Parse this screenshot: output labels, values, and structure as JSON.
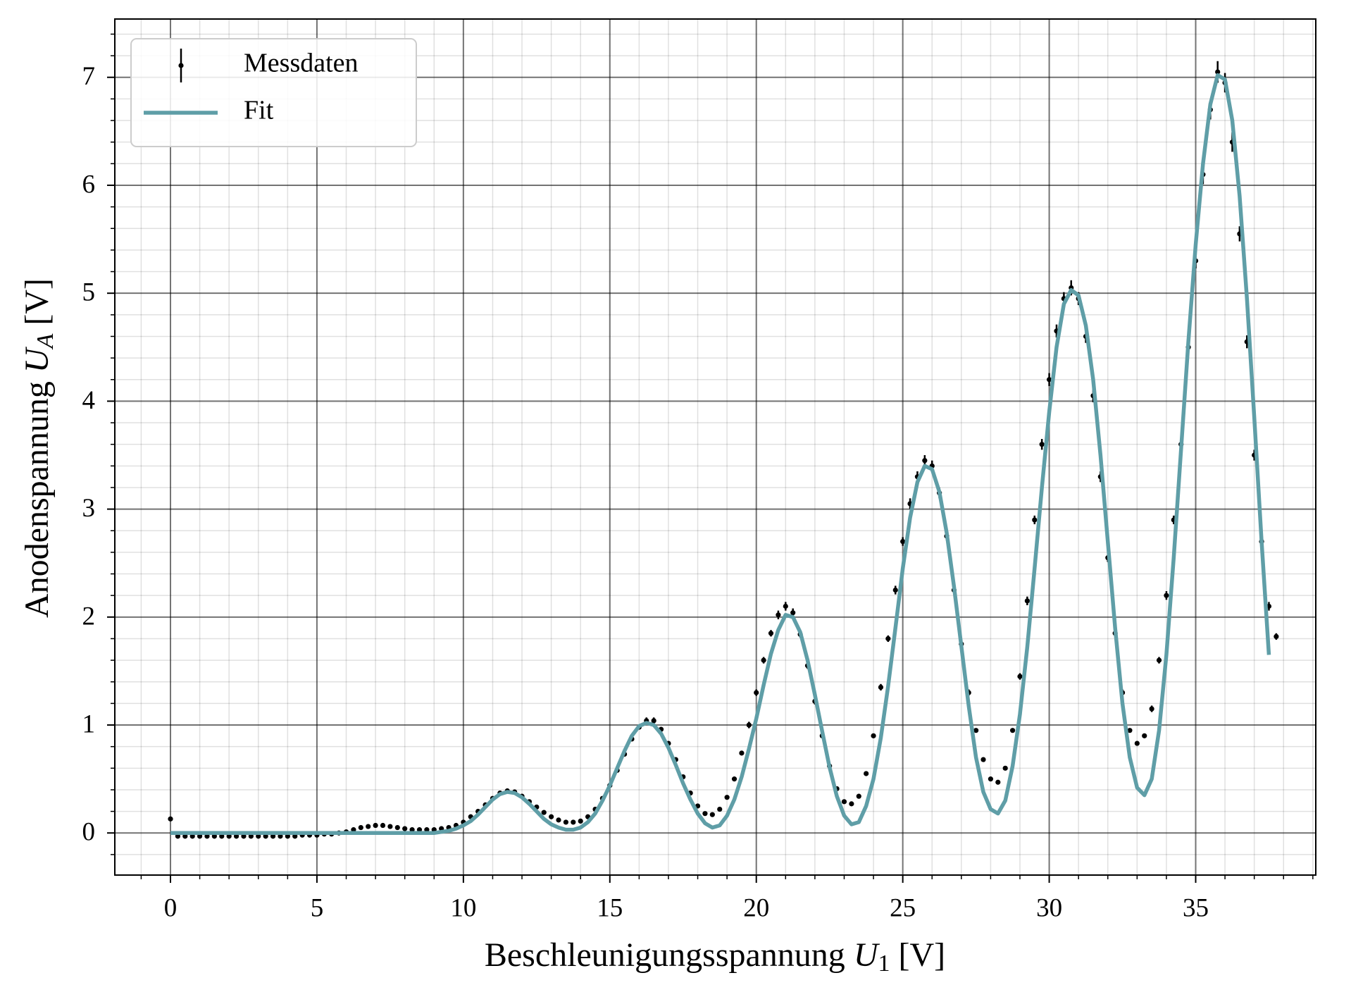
{
  "chart_data": {
    "type": "errorbar_line",
    "xlabel": {
      "text": "Beschleunigungsspannung",
      "var": "U",
      "sub": "1",
      "unit": "[V]"
    },
    "ylabel": {
      "text": "Anodenspannung",
      "var": "U",
      "sub": "A",
      "unit": "[V]"
    },
    "xlim": [
      -1.9,
      39.1
    ],
    "ylim": [
      -0.39,
      7.54
    ],
    "xticks": [
      0,
      5,
      10,
      15,
      20,
      25,
      30,
      35
    ],
    "yticks": [
      0,
      1,
      2,
      3,
      4,
      5,
      6,
      7
    ],
    "x_minor_ticks": [
      -1,
      1,
      2,
      3,
      4,
      6,
      7,
      8,
      9,
      11,
      12,
      13,
      14,
      16,
      17,
      18,
      19,
      21,
      22,
      23,
      24,
      26,
      27,
      28,
      29,
      31,
      32,
      33,
      34,
      36,
      37,
      38,
      39
    ],
    "y_minor_ticks": [
      -0.2,
      0.2,
      0.4,
      0.6,
      0.8,
      1.2,
      1.4,
      1.6,
      1.8,
      2.2,
      2.4,
      2.6,
      2.8,
      3.2,
      3.4,
      3.6,
      3.8,
      4.2,
      4.4,
      4.6,
      4.8,
      5.2,
      5.4,
      5.6,
      5.8,
      6.2,
      6.4,
      6.6,
      6.8,
      7.2,
      7.4
    ],
    "grid": true,
    "legend": "upper left",
    "x": [
      0,
      0.25,
      0.5,
      0.75,
      1,
      1.25,
      1.5,
      1.75,
      2,
      2.25,
      2.5,
      2.75,
      3,
      3.25,
      3.5,
      3.75,
      4,
      4.25,
      4.5,
      4.75,
      5,
      5.25,
      5.5,
      5.75,
      6,
      6.25,
      6.5,
      6.75,
      7,
      7.25,
      7.5,
      7.75,
      8,
      8.25,
      8.5,
      8.75,
      9,
      9.25,
      9.5,
      9.75,
      10,
      10.25,
      10.5,
      10.75,
      11,
      11.25,
      11.5,
      11.75,
      12,
      12.25,
      12.5,
      12.75,
      13,
      13.25,
      13.5,
      13.75,
      14,
      14.25,
      14.5,
      14.75,
      15,
      15.25,
      15.5,
      15.75,
      16,
      16.25,
      16.5,
      16.75,
      17,
      17.25,
      17.5,
      17.75,
      18,
      18.25,
      18.5,
      18.75,
      19,
      19.25,
      19.5,
      19.75,
      20,
      20.25,
      20.5,
      20.75,
      21,
      21.25,
      21.5,
      21.75,
      22,
      22.25,
      22.5,
      22.75,
      23,
      23.25,
      23.5,
      23.75,
      24,
      24.25,
      24.5,
      24.75,
      25,
      25.25,
      25.5,
      25.75,
      26,
      26.25,
      26.5,
      26.75,
      27,
      27.25,
      27.5,
      27.75,
      28,
      28.25,
      28.5,
      28.75,
      29,
      29.25,
      29.5,
      29.75,
      30,
      30.25,
      30.5,
      30.75,
      31,
      31.25,
      31.5,
      31.75,
      32,
      32.25,
      32.5,
      32.75,
      33,
      33.25,
      33.5,
      33.75,
      34,
      34.25,
      34.5,
      34.75,
      35,
      35.25,
      35.5,
      35.75,
      36,
      36.25,
      36.5,
      36.75,
      37,
      37.25,
      37.5,
      37.75
    ],
    "series": [
      {
        "name": "Messdaten",
        "color": "#000000",
        "kind": "errorbar",
        "values": [
          0.13,
          -0.03,
          -0.03,
          -0.03,
          -0.03,
          -0.03,
          -0.03,
          -0.03,
          -0.03,
          -0.03,
          -0.03,
          -0.03,
          -0.03,
          -0.03,
          -0.03,
          -0.03,
          -0.03,
          -0.03,
          -0.02,
          -0.02,
          -0.02,
          -0.01,
          -0.01,
          0.0,
          0.01,
          0.03,
          0.05,
          0.06,
          0.07,
          0.07,
          0.06,
          0.05,
          0.04,
          0.03,
          0.03,
          0.03,
          0.03,
          0.04,
          0.05,
          0.07,
          0.1,
          0.15,
          0.2,
          0.26,
          0.32,
          0.37,
          0.39,
          0.38,
          0.34,
          0.29,
          0.24,
          0.19,
          0.15,
          0.12,
          0.1,
          0.1,
          0.11,
          0.15,
          0.22,
          0.32,
          0.44,
          0.58,
          0.73,
          0.87,
          0.98,
          1.04,
          1.04,
          0.96,
          0.83,
          0.68,
          0.52,
          0.37,
          0.25,
          0.18,
          0.17,
          0.22,
          0.33,
          0.5,
          0.74,
          1.0,
          1.3,
          1.6,
          1.85,
          2.02,
          2.1,
          2.04,
          1.84,
          1.55,
          1.22,
          0.9,
          0.62,
          0.41,
          0.29,
          0.27,
          0.34,
          0.55,
          0.9,
          1.35,
          1.8,
          2.25,
          2.7,
          3.05,
          3.3,
          3.45,
          3.4,
          3.15,
          2.75,
          2.25,
          1.75,
          1.3,
          0.95,
          0.68,
          0.5,
          0.47,
          0.6,
          0.95,
          1.45,
          2.15,
          2.9,
          3.6,
          4.2,
          4.65,
          4.95,
          5.05,
          4.95,
          4.6,
          4.05,
          3.3,
          2.55,
          1.85,
          1.3,
          0.95,
          0.83,
          0.9,
          1.15,
          1.6,
          2.2,
          2.9,
          3.6,
          4.5,
          5.3,
          6.1,
          6.7,
          7.05,
          6.95,
          6.4,
          5.55,
          4.55,
          3.5,
          2.7,
          2.1,
          1.82
        ],
        "yerr": [
          0.02,
          0.02,
          0.02,
          0.02,
          0.02,
          0.02,
          0.02,
          0.02,
          0.02,
          0.02,
          0.02,
          0.02,
          0.02,
          0.02,
          0.02,
          0.02,
          0.02,
          0.02,
          0.02,
          0.02,
          0.02,
          0.02,
          0.02,
          0.02,
          0.02,
          0.02,
          0.02,
          0.02,
          0.02,
          0.02,
          0.02,
          0.02,
          0.02,
          0.02,
          0.02,
          0.02,
          0.02,
          0.02,
          0.02,
          0.02,
          0.02,
          0.02,
          0.02,
          0.02,
          0.02,
          0.02,
          0.02,
          0.02,
          0.02,
          0.02,
          0.02,
          0.02,
          0.02,
          0.02,
          0.02,
          0.02,
          0.02,
          0.02,
          0.02,
          0.02,
          0.02,
          0.02,
          0.02,
          0.02,
          0.02,
          0.03,
          0.03,
          0.02,
          0.02,
          0.02,
          0.02,
          0.02,
          0.02,
          0.02,
          0.02,
          0.02,
          0.02,
          0.02,
          0.02,
          0.03,
          0.03,
          0.03,
          0.03,
          0.04,
          0.04,
          0.04,
          0.03,
          0.03,
          0.03,
          0.02,
          0.02,
          0.02,
          0.02,
          0.02,
          0.02,
          0.02,
          0.02,
          0.03,
          0.03,
          0.04,
          0.04,
          0.05,
          0.05,
          0.05,
          0.05,
          0.05,
          0.04,
          0.04,
          0.03,
          0.03,
          0.02,
          0.02,
          0.02,
          0.02,
          0.02,
          0.02,
          0.03,
          0.04,
          0.04,
          0.05,
          0.06,
          0.06,
          0.06,
          0.07,
          0.06,
          0.06,
          0.06,
          0.05,
          0.04,
          0.03,
          0.03,
          0.02,
          0.02,
          0.02,
          0.03,
          0.03,
          0.04,
          0.04,
          0.05,
          0.06,
          0.07,
          0.09,
          0.09,
          0.1,
          0.09,
          0.09,
          0.07,
          0.06,
          0.05,
          0.04,
          0.04,
          0.03
        ]
      },
      {
        "name": "Fit",
        "color": "#5f9ea7",
        "kind": "line",
        "values": [
          0,
          0,
          0,
          0,
          0,
          0,
          0,
          0,
          0,
          0,
          0,
          0,
          0,
          0,
          0,
          0,
          0,
          0,
          0,
          0,
          0,
          0,
          0,
          0,
          0,
          0,
          0,
          0,
          0,
          0,
          0,
          0,
          0,
          0,
          0,
          0,
          0,
          0.01,
          0.02,
          0.04,
          0.07,
          0.11,
          0.17,
          0.24,
          0.31,
          0.36,
          0.38,
          0.37,
          0.33,
          0.27,
          0.2,
          0.13,
          0.08,
          0.05,
          0.03,
          0.03,
          0.05,
          0.1,
          0.18,
          0.3,
          0.44,
          0.6,
          0.76,
          0.9,
          0.99,
          1.02,
          1.0,
          0.92,
          0.79,
          0.63,
          0.46,
          0.31,
          0.18,
          0.09,
          0.05,
          0.07,
          0.16,
          0.31,
          0.52,
          0.78,
          1.06,
          1.37,
          1.66,
          1.88,
          2.02,
          2.0,
          1.86,
          1.6,
          1.28,
          0.94,
          0.61,
          0.34,
          0.16,
          0.08,
          0.1,
          0.25,
          0.5,
          0.88,
          1.36,
          1.9,
          2.45,
          2.92,
          3.25,
          3.4,
          3.37,
          3.16,
          2.78,
          2.28,
          1.73,
          1.18,
          0.7,
          0.38,
          0.22,
          0.18,
          0.3,
          0.62,
          1.1,
          1.72,
          2.45,
          3.2,
          3.9,
          4.5,
          4.9,
          5.03,
          4.98,
          4.7,
          4.2,
          3.5,
          2.7,
          1.9,
          1.2,
          0.7,
          0.42,
          0.35,
          0.5,
          0.95,
          1.65,
          2.55,
          3.55,
          4.55,
          5.45,
          6.2,
          6.75,
          7.02,
          6.98,
          6.6,
          5.9,
          4.95,
          3.85,
          2.7,
          1.65,
          null
        ]
      }
    ]
  }
}
